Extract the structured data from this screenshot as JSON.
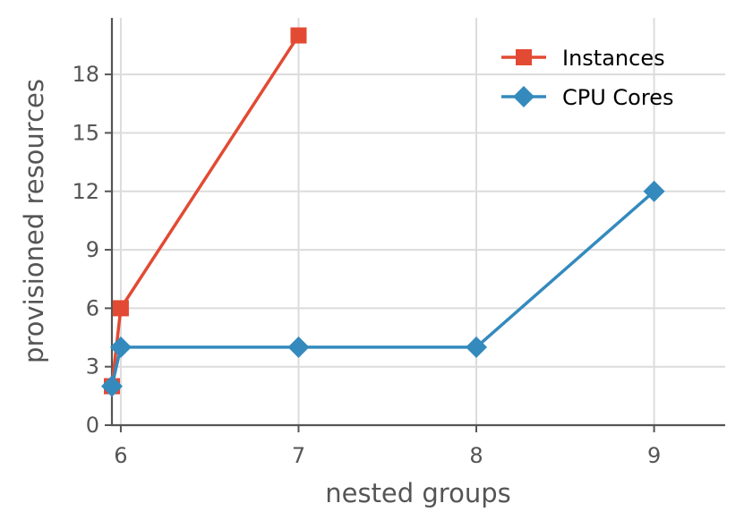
{
  "chart_data": {
    "type": "line",
    "xlabel": "nested groups",
    "ylabel": "provisioned resources",
    "x_ticks": [
      "6",
      "7",
      "8",
      "9"
    ],
    "y_ticks": [
      "0",
      "3",
      "6",
      "9",
      "12",
      "15",
      "18"
    ],
    "xlim": [
      5.95,
      9.4
    ],
    "ylim": [
      0,
      20.9
    ],
    "grid": true,
    "legend": "top-right",
    "series": [
      {
        "name": "Instances",
        "color": "#e24a33",
        "marker": "square",
        "points": [
          {
            "x": 5.95,
            "y": 2
          },
          {
            "x": 6,
            "y": 6
          },
          {
            "x": 7,
            "y": 20
          }
        ]
      },
      {
        "name": "CPU Cores",
        "color": "#348abd",
        "marker": "diamond",
        "points": [
          {
            "x": 5.95,
            "y": 2
          },
          {
            "x": 6,
            "y": 4
          },
          {
            "x": 7,
            "y": 4
          },
          {
            "x": 8,
            "y": 4
          },
          {
            "x": 9,
            "y": 12
          }
        ]
      }
    ]
  }
}
